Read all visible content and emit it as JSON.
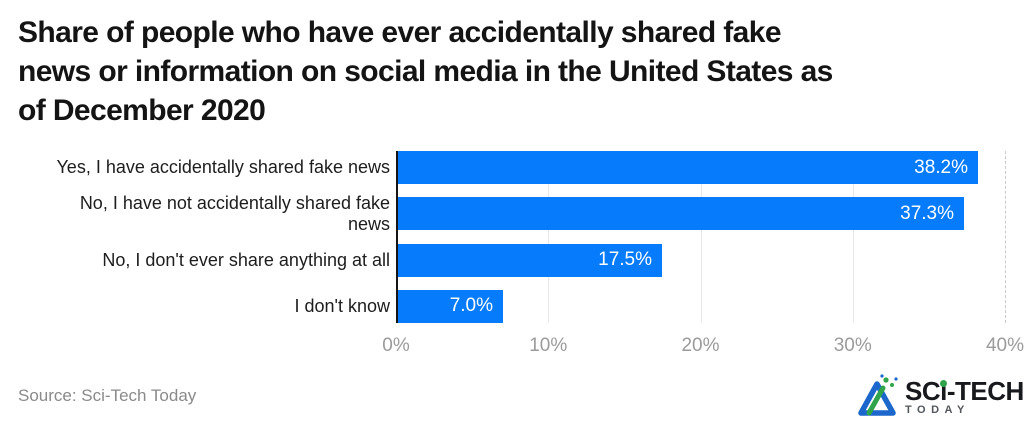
{
  "page": {
    "title_lines": [
      "Share of people who have ever accidentally shared fake",
      "news or information on social media in the United States as",
      "of December 2020"
    ],
    "footer": {
      "source": "Source: Sci-Tech Today"
    },
    "logo": {
      "brand": "SCi-TECH",
      "brand_prefix": "SC",
      "brand_i": "ı",
      "brand_suffix": "-TECH",
      "subtitle": "TODAY"
    }
  },
  "chart_data": {
    "type": "bar",
    "orientation": "horizontal",
    "title": "Share of people who have ever accidentally shared fake news or information on social media in the United States as of December 2020",
    "categories": [
      "Yes, I have accidentally shared fake news",
      "No, I have not accidentally shared fake news",
      "No, I don't ever share anything at all",
      "I don't know"
    ],
    "categories_display": [
      "Yes, I have accidentally shared fake news",
      "No, I have not accidentally shared fake\nnews",
      "No, I don't ever share anything at all",
      "I don't know"
    ],
    "values": [
      38.2,
      37.3,
      17.5,
      7.0
    ],
    "value_labels": [
      "38.2%",
      "37.3%",
      "17.5%",
      "7.0%"
    ],
    "xlabel": "",
    "ylabel": "",
    "xlim": [
      0,
      40
    ],
    "xticks": [
      0,
      10,
      20,
      30,
      40
    ],
    "xtick_labels": [
      "0%",
      "10%",
      "20%",
      "30%",
      "40%"
    ],
    "legend": "none",
    "grid": "vertical gridlines at 10/20/30 solid, 40 dashed",
    "colors": {
      "bar": "#067bfc",
      "value_label": "#ffffff",
      "axis_line": "#151515",
      "gridline": "#e7e7e7",
      "gridline_dashed": "#c9c9c9",
      "tick_label": "#9b9b9b",
      "title": "#141414",
      "category_label": "#1d1d1d",
      "source": "#8a8a8a",
      "logo_green": "#2fa44a",
      "logo_blue": "#1b67cb"
    }
  }
}
